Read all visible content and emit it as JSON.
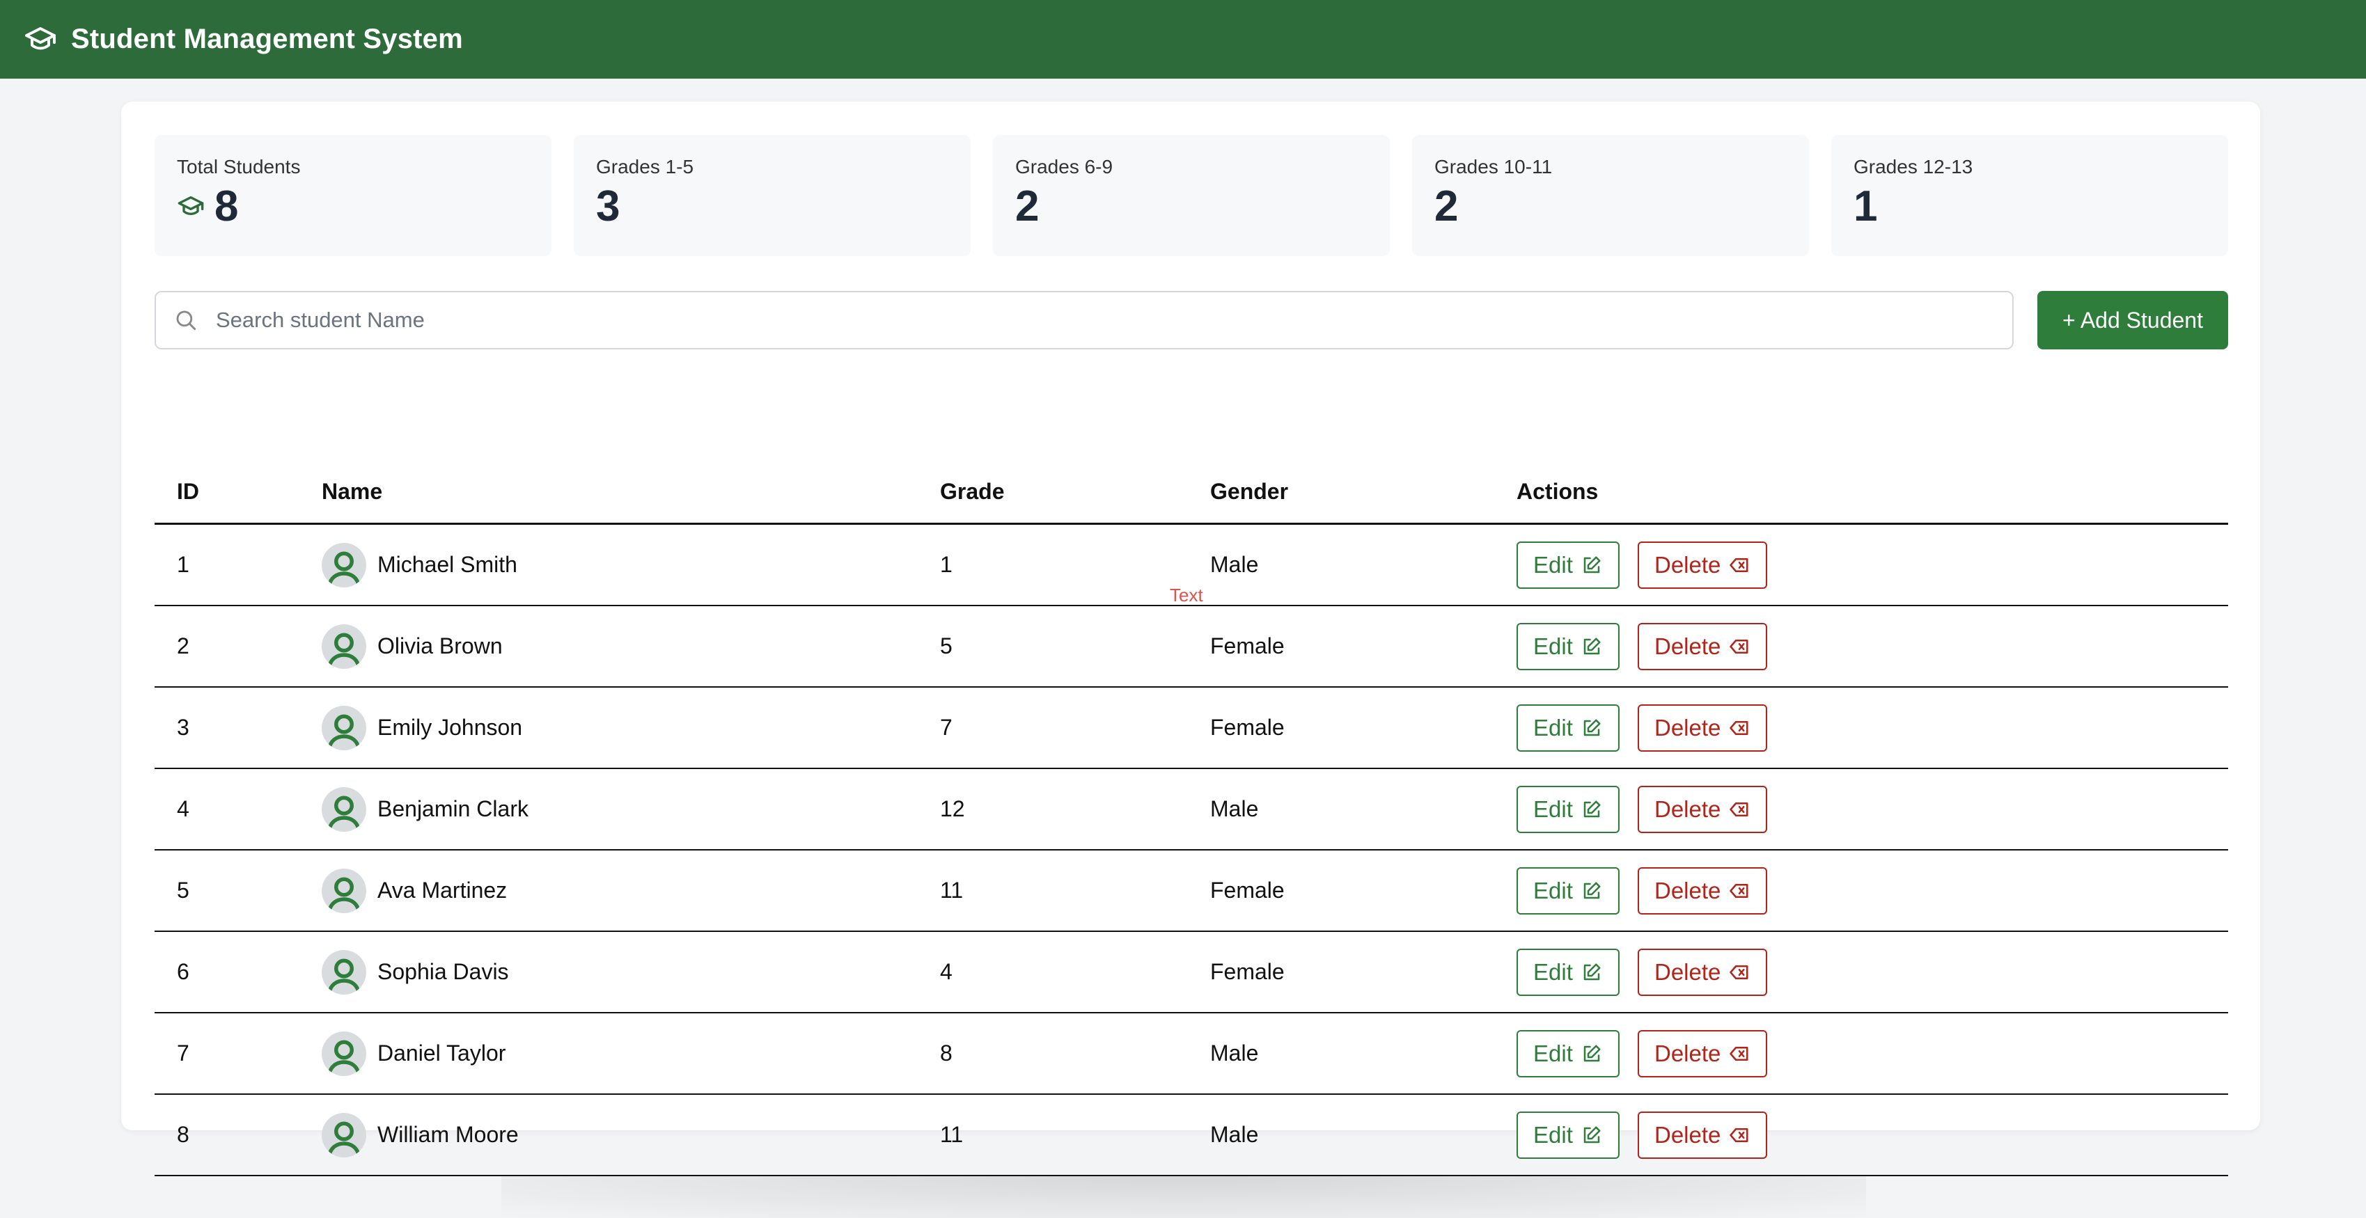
{
  "header": {
    "title": "Student Management System",
    "logo_icon": "graduation-cap-icon"
  },
  "stats": [
    {
      "label": "Total Students",
      "value": "8",
      "icon": "graduation-cap-icon"
    },
    {
      "label": "Grades 1-5",
      "value": "3"
    },
    {
      "label": "Grades 6-9",
      "value": "2"
    },
    {
      "label": "Grades 10-11",
      "value": "2"
    },
    {
      "label": "Grades 12-13",
      "value": "1"
    }
  ],
  "search": {
    "placeholder": "Search student Name",
    "value": ""
  },
  "add_button": {
    "label": "+ Add Student"
  },
  "table": {
    "headers": {
      "id": "ID",
      "name": "Name",
      "grade": "Grade",
      "gender": "Gender",
      "actions": "Actions"
    },
    "rows": [
      {
        "id": "1",
        "name": "Michael Smith",
        "grade": "1",
        "gender": "Male"
      },
      {
        "id": "2",
        "name": "Olivia Brown",
        "grade": "5",
        "gender": "Female"
      },
      {
        "id": "3",
        "name": "Emily Johnson",
        "grade": "7",
        "gender": "Female"
      },
      {
        "id": "4",
        "name": "Benjamin Clark",
        "grade": "12",
        "gender": "Male"
      },
      {
        "id": "5",
        "name": "Ava Martinez",
        "grade": "11",
        "gender": "Female"
      },
      {
        "id": "6",
        "name": "Sophia Davis",
        "grade": "4",
        "gender": "Female"
      },
      {
        "id": "7",
        "name": "Daniel Taylor",
        "grade": "8",
        "gender": "Male"
      },
      {
        "id": "8",
        "name": "William Moore",
        "grade": "11",
        "gender": "Male"
      }
    ],
    "edit_label": "Edit",
    "delete_label": "Delete"
  },
  "floating_text": "Text",
  "colors": {
    "primary": "#2e6b3a",
    "button": "#2e7d3a",
    "danger": "#b42318",
    "background": "#f3f4f6"
  }
}
